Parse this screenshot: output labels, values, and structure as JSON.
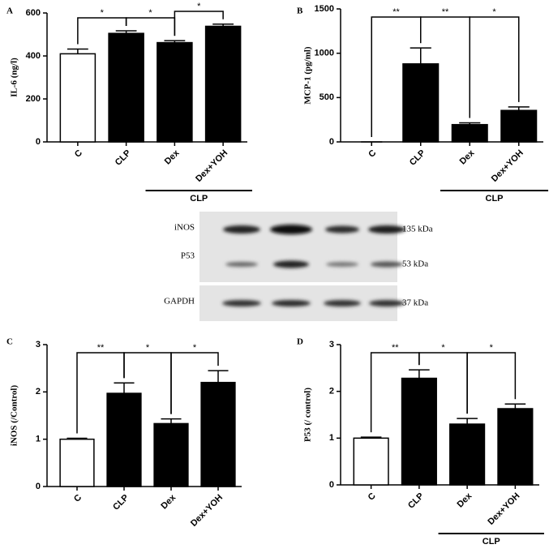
{
  "chart_data": [
    {
      "type": "bar",
      "panel": "A",
      "y_label": "IL-6 (ng/l)",
      "categories": [
        "C",
        "CLP",
        "Dex",
        "Dex+YOH"
      ],
      "values": [
        410,
        505,
        462,
        538
      ],
      "errors": [
        22,
        12,
        9,
        10
      ],
      "bar_colors": [
        "#ffffff",
        "#000000",
        "#000000",
        "#000000"
      ],
      "ylim": [
        0,
        600
      ],
      "yticks": [
        0,
        200,
        400,
        600
      ],
      "significance": [
        {
          "label": "*",
          "groups": [
            "C",
            "CLP"
          ]
        },
        {
          "label": "*",
          "groups": [
            "CLP",
            "Dex"
          ]
        },
        {
          "label": "*",
          "groups": [
            "Dex",
            "Dex+YOH"
          ]
        }
      ],
      "group_label": {
        "text": "CLP",
        "categories": [
          "Dex",
          "Dex+YOH"
        ]
      }
    },
    {
      "type": "bar",
      "panel": "B",
      "y_label": "MCP-1 (pg/ml)",
      "categories": [
        "C",
        "CLP",
        "Dex",
        "Dex+YOH"
      ],
      "values": [
        0,
        880,
        195,
        355
      ],
      "errors": [
        0,
        180,
        20,
        40
      ],
      "bar_colors": [
        "#ffffff",
        "#000000",
        "#000000",
        "#000000"
      ],
      "ylim": [
        0,
        1500
      ],
      "yticks": [
        0,
        500,
        1000,
        1500
      ],
      "significance": [
        {
          "label": "**",
          "groups": [
            "C",
            "CLP"
          ]
        },
        {
          "label": "**",
          "groups": [
            "CLP",
            "Dex"
          ]
        },
        {
          "label": "*",
          "groups": [
            "Dex",
            "Dex+YOH"
          ]
        }
      ],
      "group_label": {
        "text": "CLP",
        "categories": [
          "Dex",
          "Dex+YOH"
        ]
      }
    },
    {
      "type": "bar",
      "panel": "C",
      "y_label": "iNOS (/Control)",
      "categories": [
        "C",
        "CLP",
        "Dex",
        "Dex+YOH"
      ],
      "values": [
        1.0,
        1.97,
        1.33,
        2.2
      ],
      "errors": [
        0.02,
        0.22,
        0.1,
        0.25
      ],
      "bar_colors": [
        "#ffffff",
        "#000000",
        "#000000",
        "#000000"
      ],
      "ylim": [
        0,
        3
      ],
      "yticks": [
        0,
        1,
        2,
        3
      ],
      "significance": [
        {
          "label": "**",
          "groups": [
            "C",
            "CLP"
          ]
        },
        {
          "label": "*",
          "groups": [
            "CLP",
            "Dex"
          ]
        },
        {
          "label": "*",
          "groups": [
            "Dex",
            "Dex+YOH"
          ]
        }
      ],
      "group_label": null
    },
    {
      "type": "bar",
      "panel": "D",
      "y_label": "P53 (/ control)",
      "categories": [
        "C",
        "CLP",
        "Dex",
        "Dex+YOH"
      ],
      "values": [
        1.0,
        2.28,
        1.3,
        1.63
      ],
      "errors": [
        0.02,
        0.18,
        0.12,
        0.1
      ],
      "bar_colors": [
        "#ffffff",
        "#000000",
        "#000000",
        "#000000"
      ],
      "ylim": [
        0,
        3
      ],
      "yticks": [
        0,
        1,
        2,
        3
      ],
      "significance": [
        {
          "label": "**",
          "groups": [
            "C",
            "CLP"
          ]
        },
        {
          "label": "*",
          "groups": [
            "CLP",
            "Dex"
          ]
        },
        {
          "label": "*",
          "groups": [
            "Dex",
            "Dex+YOH"
          ]
        }
      ],
      "group_label": {
        "text": "CLP",
        "categories": [
          "Dex",
          "Dex+YOH"
        ]
      }
    }
  ],
  "blot": {
    "rows": [
      {
        "label": "iNOS",
        "size": "135 kDa"
      },
      {
        "label": "P53",
        "size": "53 kDa"
      },
      {
        "label": "GAPDH",
        "size": "37 kDa"
      }
    ]
  }
}
